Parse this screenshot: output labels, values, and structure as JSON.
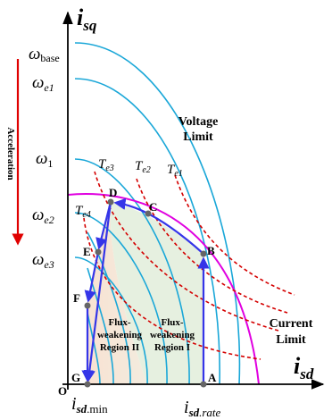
{
  "axes": {
    "y_label": "i",
    "y_sub": "sq",
    "x_label": "i",
    "x_sub": "sd",
    "origin": "O"
  },
  "speed_labels": {
    "base": {
      "sym": "ω",
      "sub": "base"
    },
    "e1": {
      "sym": "ω",
      "sub": "e1"
    },
    "one": {
      "sym": "ω",
      "sub": "1"
    },
    "e2": {
      "sym": "ω",
      "sub": "e2"
    },
    "e3": {
      "sym": "ω",
      "sub": "e3"
    }
  },
  "acceleration_label": "Acceleration",
  "torque_labels": {
    "t3": {
      "sym": "T",
      "sub": "e3"
    },
    "t2": {
      "sym": "T",
      "sub": "e2"
    },
    "t1": {
      "sym": "T",
      "sub": "e1"
    },
    "t4": {
      "sym": "T",
      "sub": "e4"
    }
  },
  "points": {
    "A": "A",
    "B": "B",
    "C": "C",
    "D": "D",
    "E": "E",
    "F": "F",
    "G": "G"
  },
  "voltage_limit": [
    "Voltage",
    "Limit"
  ],
  "current_limit": [
    "Current",
    "Limit"
  ],
  "region2": [
    "Flux-",
    "weakening",
    "Region II"
  ],
  "region1": [
    "Flux-",
    "weakening",
    "Region I"
  ],
  "x_ticks": {
    "min": {
      "sym": "i",
      "sub": "sd",
      "suffix": ".min"
    },
    "rate": {
      "sym": "i",
      "sub": "sd",
      "suffix": ".rate"
    }
  },
  "colors": {
    "voltage_ellipse": "#1aa7d8",
    "current_circle": "#e000e0",
    "torque": "#d40000",
    "trajectory": "#3535e8",
    "acceleration_arrow": "#e00000",
    "region1_fill": "#e6f0e0",
    "region2_fill": "#f8e2d2"
  }
}
